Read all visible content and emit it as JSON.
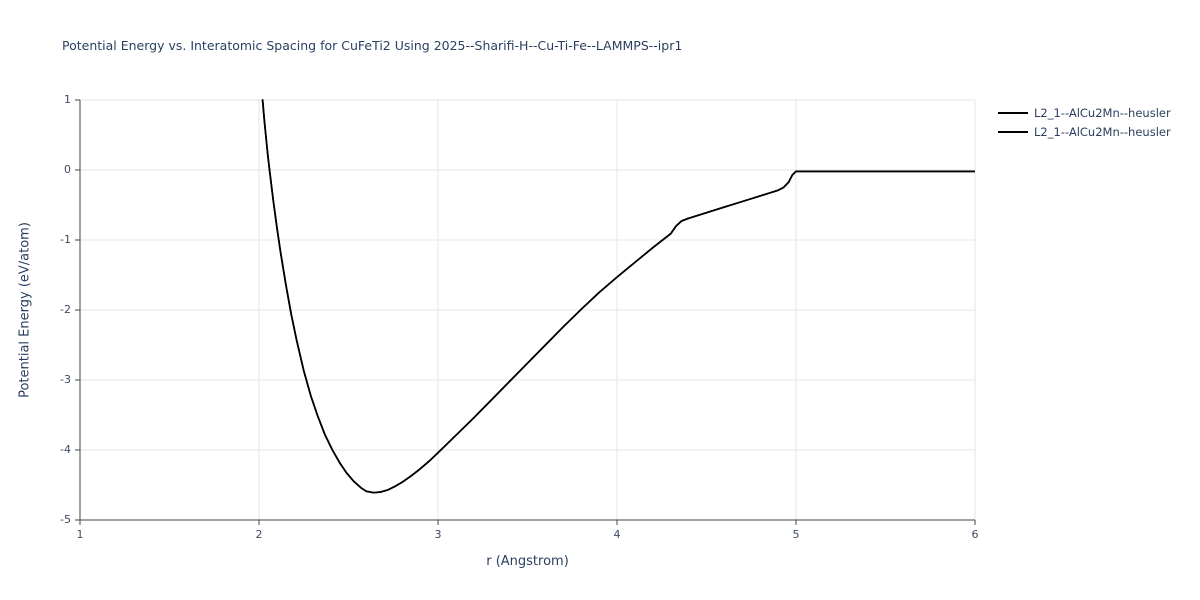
{
  "page": {
    "background": "#ffffff"
  },
  "chart_data": {
    "type": "line",
    "title": "Potential Energy vs. Interatomic Spacing for CuFeTi2 Using 2025--Sharifi-H--Cu-Ti-Fe--LAMMPS--ipr1",
    "xlabel": "r (Angstrom)",
    "ylabel": "Potential Energy (eV/atom)",
    "xlim": [
      1,
      6
    ],
    "ylim": [
      -5,
      1
    ],
    "xticks": [
      1,
      2,
      3,
      4,
      5,
      6
    ],
    "yticks": [
      -5,
      -4,
      -3,
      -2,
      -1,
      0,
      1
    ],
    "grid": true,
    "legend_position": "top-right-outside",
    "colors": {
      "line": "#000000",
      "text": "#2a3f5f",
      "tick_text": "#3b4b63",
      "grid": "#e6e6e6",
      "axis": "#444444"
    },
    "series": [
      {
        "name": "L2_1--AlCu2Mn--heusler",
        "color": "#000000",
        "points": [
          [
            2.02,
            1.0
          ],
          [
            2.03,
            0.7
          ],
          [
            2.04,
            0.44
          ],
          [
            2.05,
            0.2
          ],
          [
            2.06,
            -0.02
          ],
          [
            2.08,
            -0.44
          ],
          [
            2.1,
            -0.82
          ],
          [
            2.12,
            -1.17
          ],
          [
            2.15,
            -1.64
          ],
          [
            2.18,
            -2.06
          ],
          [
            2.21,
            -2.43
          ],
          [
            2.25,
            -2.87
          ],
          [
            2.29,
            -3.23
          ],
          [
            2.33,
            -3.53
          ],
          [
            2.37,
            -3.79
          ],
          [
            2.41,
            -4.0
          ],
          [
            2.45,
            -4.18
          ],
          [
            2.49,
            -4.33
          ],
          [
            2.53,
            -4.45
          ],
          [
            2.57,
            -4.54
          ],
          [
            2.6,
            -4.59
          ],
          [
            2.64,
            -4.61
          ],
          [
            2.68,
            -4.6
          ],
          [
            2.72,
            -4.57
          ],
          [
            2.76,
            -4.52
          ],
          [
            2.8,
            -4.46
          ],
          [
            2.85,
            -4.37
          ],
          [
            2.9,
            -4.27
          ],
          [
            2.95,
            -4.16
          ],
          [
            3.0,
            -4.04
          ],
          [
            3.1,
            -3.79
          ],
          [
            3.2,
            -3.54
          ],
          [
            3.3,
            -3.28
          ],
          [
            3.4,
            -3.02
          ],
          [
            3.5,
            -2.76
          ],
          [
            3.6,
            -2.5
          ],
          [
            3.7,
            -2.24
          ],
          [
            3.8,
            -1.99
          ],
          [
            3.9,
            -1.75
          ],
          [
            4.0,
            -1.53
          ],
          [
            4.1,
            -1.32
          ],
          [
            4.2,
            -1.11
          ],
          [
            4.3,
            -0.91
          ],
          [
            4.33,
            -0.8
          ],
          [
            4.36,
            -0.73
          ],
          [
            4.4,
            -0.69
          ],
          [
            4.5,
            -0.61
          ],
          [
            4.6,
            -0.53
          ],
          [
            4.7,
            -0.45
          ],
          [
            4.8,
            -0.37
          ],
          [
            4.9,
            -0.29
          ],
          [
            4.93,
            -0.25
          ],
          [
            4.96,
            -0.17
          ],
          [
            4.98,
            -0.07
          ],
          [
            5.0,
            -0.02
          ],
          [
            5.25,
            -0.02
          ],
          [
            5.5,
            -0.02
          ],
          [
            5.75,
            -0.02
          ],
          [
            6.0,
            -0.02
          ]
        ]
      },
      {
        "name": "L2_1--AlCu2Mn--heusler",
        "color": "#000000",
        "points": [
          [
            2.02,
            1.0
          ],
          [
            2.03,
            0.7
          ],
          [
            2.04,
            0.44
          ],
          [
            2.05,
            0.2
          ],
          [
            2.06,
            -0.02
          ],
          [
            2.08,
            -0.44
          ],
          [
            2.1,
            -0.82
          ],
          [
            2.12,
            -1.17
          ],
          [
            2.15,
            -1.64
          ],
          [
            2.18,
            -2.06
          ],
          [
            2.21,
            -2.43
          ],
          [
            2.25,
            -2.87
          ],
          [
            2.29,
            -3.23
          ],
          [
            2.33,
            -3.53
          ],
          [
            2.37,
            -3.79
          ],
          [
            2.41,
            -4.0
          ],
          [
            2.45,
            -4.18
          ],
          [
            2.49,
            -4.33
          ],
          [
            2.53,
            -4.45
          ],
          [
            2.57,
            -4.54
          ],
          [
            2.6,
            -4.59
          ],
          [
            2.64,
            -4.61
          ],
          [
            2.68,
            -4.6
          ],
          [
            2.72,
            -4.57
          ],
          [
            2.76,
            -4.52
          ],
          [
            2.8,
            -4.46
          ],
          [
            2.85,
            -4.37
          ],
          [
            2.9,
            -4.27
          ],
          [
            2.95,
            -4.16
          ],
          [
            3.0,
            -4.04
          ],
          [
            3.1,
            -3.79
          ],
          [
            3.2,
            -3.54
          ],
          [
            3.3,
            -3.28
          ],
          [
            3.4,
            -3.02
          ],
          [
            3.5,
            -2.76
          ],
          [
            3.6,
            -2.5
          ],
          [
            3.7,
            -2.24
          ],
          [
            3.8,
            -1.99
          ],
          [
            3.9,
            -1.75
          ],
          [
            4.0,
            -1.53
          ],
          [
            4.1,
            -1.32
          ],
          [
            4.2,
            -1.11
          ],
          [
            4.3,
            -0.91
          ],
          [
            4.33,
            -0.8
          ],
          [
            4.36,
            -0.73
          ],
          [
            4.4,
            -0.69
          ],
          [
            4.5,
            -0.61
          ],
          [
            4.6,
            -0.53
          ],
          [
            4.7,
            -0.45
          ],
          [
            4.8,
            -0.37
          ],
          [
            4.9,
            -0.29
          ],
          [
            4.93,
            -0.25
          ],
          [
            4.96,
            -0.17
          ],
          [
            4.98,
            -0.07
          ],
          [
            5.0,
            -0.02
          ],
          [
            5.25,
            -0.02
          ],
          [
            5.5,
            -0.02
          ],
          [
            5.75,
            -0.02
          ],
          [
            6.0,
            -0.02
          ]
        ]
      }
    ]
  }
}
